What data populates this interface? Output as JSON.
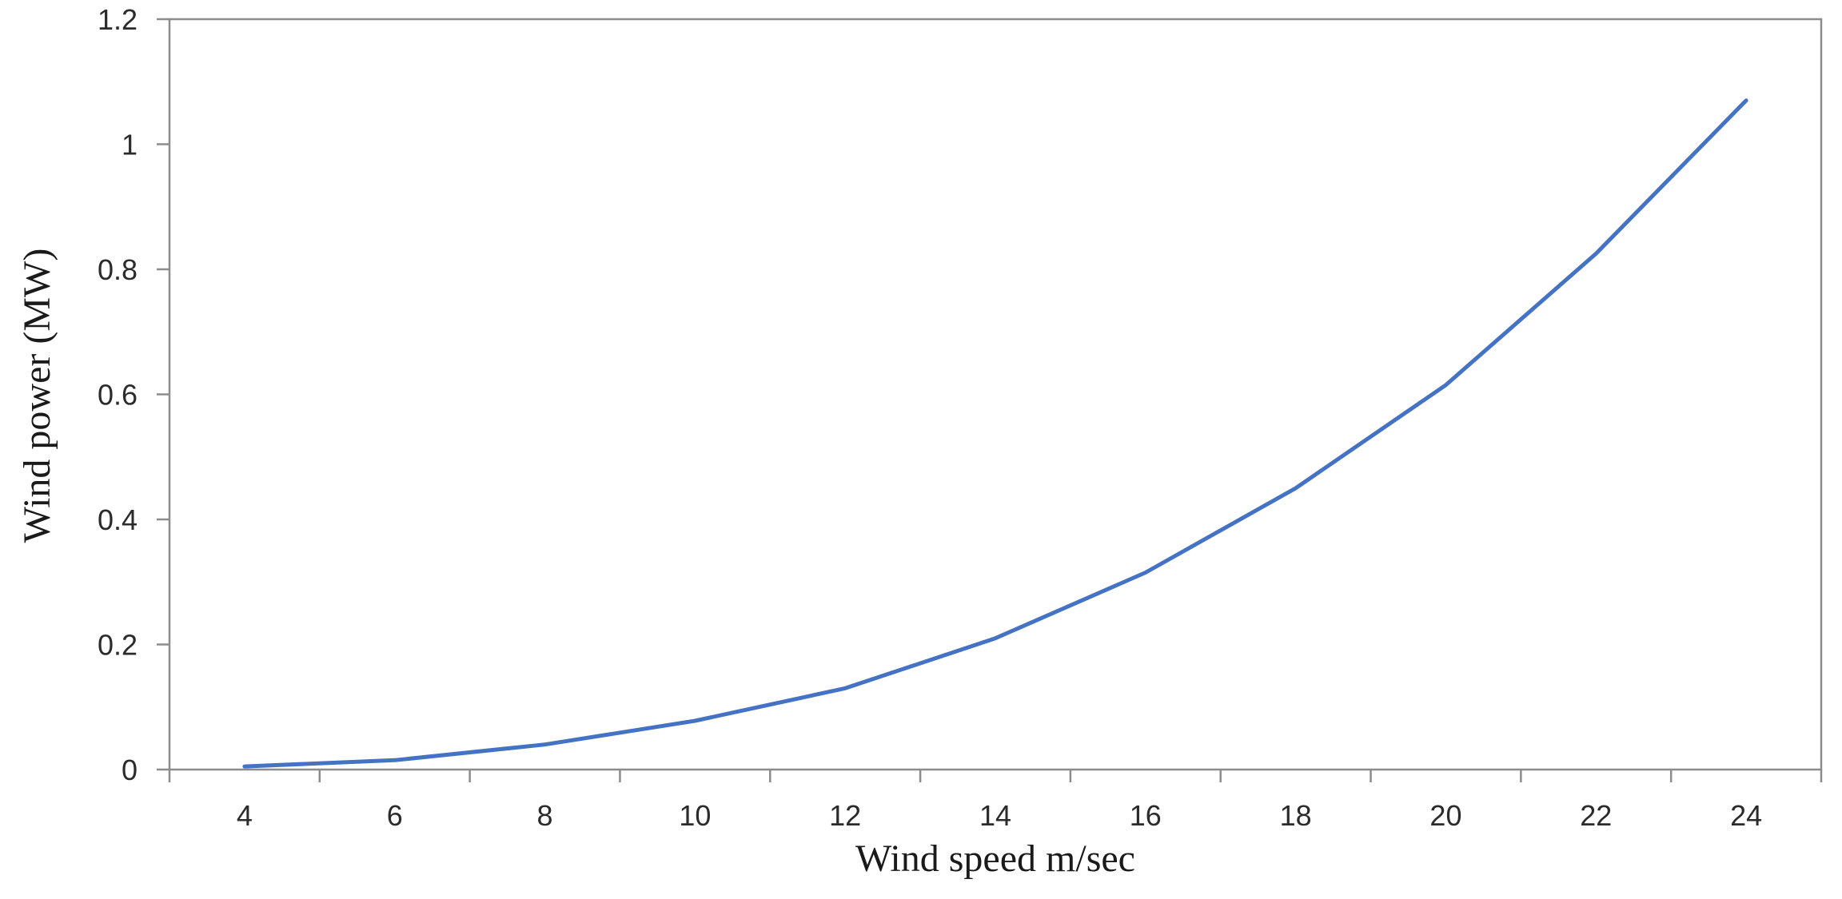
{
  "chart_data": {
    "type": "line",
    "title": "",
    "xlabel": "Wind speed m/sec",
    "ylabel": "Wind power (MW)",
    "x": [
      4,
      6,
      8,
      10,
      12,
      14,
      16,
      18,
      20,
      22,
      24
    ],
    "x_tick_labels": [
      "4",
      "6",
      "8",
      "10",
      "12",
      "14",
      "16",
      "18",
      "20",
      "22",
      "24"
    ],
    "y_ticks": [
      0,
      0.2,
      0.4,
      0.6,
      0.8,
      1,
      1.2
    ],
    "y_tick_labels": [
      "0",
      "0.2",
      "0.4",
      "0.6",
      "0.8",
      "1",
      "1.2"
    ],
    "ylim": [
      0,
      1.2
    ],
    "grid": false,
    "legend": "none",
    "series": [
      {
        "values": [
          0.005,
          0.015,
          0.04,
          0.078,
          0.13,
          0.21,
          0.315,
          0.45,
          0.615,
          0.825,
          1.07
        ],
        "color": "#4472C4"
      }
    ]
  }
}
